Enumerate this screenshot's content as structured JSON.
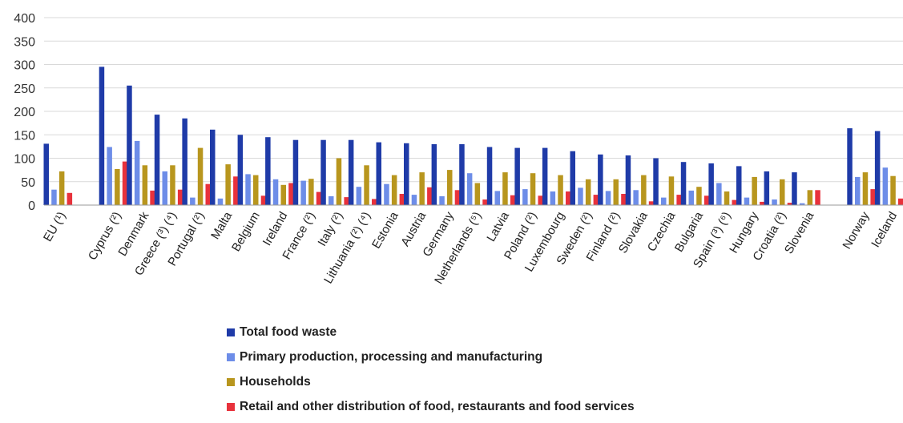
{
  "chart_data": {
    "type": "bar",
    "title": "",
    "xlabel": "",
    "ylabel": "",
    "ylim": [
      0,
      400
    ],
    "yticks": [
      0,
      50,
      100,
      150,
      200,
      250,
      300,
      350,
      400
    ],
    "grid": true,
    "legend_position": "bottom",
    "groups": [
      {
        "label": "EU (¹)",
        "gap_before": 0
      },
      {
        "label": "Cyprus (²)",
        "gap_before": 1
      },
      {
        "label": "Denmark",
        "gap_before": 0
      },
      {
        "label": "Greece (³) (⁴)",
        "gap_before": 0
      },
      {
        "label": "Portugal (²)",
        "gap_before": 0
      },
      {
        "label": "Malta",
        "gap_before": 0
      },
      {
        "label": "Belgium",
        "gap_before": 0
      },
      {
        "label": "Ireland",
        "gap_before": 0
      },
      {
        "label": "France (²)",
        "gap_before": 0
      },
      {
        "label": "Italy (²)",
        "gap_before": 0
      },
      {
        "label": "Lithuania (²) (⁴)",
        "gap_before": 0
      },
      {
        "label": "Estonia",
        "gap_before": 0
      },
      {
        "label": "Austria",
        "gap_before": 0
      },
      {
        "label": "Germany",
        "gap_before": 0
      },
      {
        "label": "Netherlands (⁵)",
        "gap_before": 0
      },
      {
        "label": "Latvia",
        "gap_before": 0
      },
      {
        "label": "Poland (²)",
        "gap_before": 0
      },
      {
        "label": "Luxembourg",
        "gap_before": 0
      },
      {
        "label": "Sweden (²)",
        "gap_before": 0
      },
      {
        "label": "Finland (²)",
        "gap_before": 0
      },
      {
        "label": "Slovakia",
        "gap_before": 0
      },
      {
        "label": "Czechia",
        "gap_before": 0
      },
      {
        "label": "Bulgaria",
        "gap_before": 0
      },
      {
        "label": "Spain (³) (⁶)",
        "gap_before": 0
      },
      {
        "label": "Hungary",
        "gap_before": 0
      },
      {
        "label": "Croatia (²)",
        "gap_before": 0
      },
      {
        "label": "Slovenia",
        "gap_before": 0
      },
      {
        "label": "Norway",
        "gap_before": 1
      },
      {
        "label": "Iceland",
        "gap_before": 0
      }
    ],
    "series": [
      {
        "name": "Total food waste",
        "color": "#1f3ba8",
        "values": [
          131,
          295,
          255,
          193,
          185,
          161,
          150,
          145,
          139,
          139,
          139,
          134,
          132,
          130,
          130,
          124,
          122,
          122,
          115,
          108,
          106,
          100,
          92,
          89,
          83,
          72,
          70,
          164,
          158
        ]
      },
      {
        "name": "Primary production, processing and manufacturing",
        "color": "#6d8de8",
        "values": [
          33,
          124,
          137,
          72,
          16,
          14,
          66,
          55,
          52,
          19,
          39,
          45,
          22,
          19,
          68,
          30,
          34,
          29,
          37,
          30,
          32,
          16,
          31,
          47,
          16,
          12,
          4,
          60,
          80
        ]
      },
      {
        "name": "Households",
        "color": "#b8961e",
        "values": [
          72,
          77,
          85,
          85,
          122,
          87,
          64,
          43,
          56,
          100,
          85,
          64,
          70,
          75,
          47,
          70,
          68,
          64,
          55,
          55,
          64,
          61,
          39,
          29,
          60,
          55,
          32,
          70,
          62
        ]
      },
      {
        "name": "Retail and other distribution of food, restaurants and food services",
        "color": "#e8323c",
        "values": [
          26,
          93,
          31,
          33,
          45,
          61,
          20,
          47,
          28,
          17,
          13,
          24,
          38,
          32,
          12,
          21,
          20,
          29,
          22,
          24,
          8,
          22,
          20,
          11,
          7,
          5,
          32,
          34,
          14
        ]
      }
    ]
  }
}
